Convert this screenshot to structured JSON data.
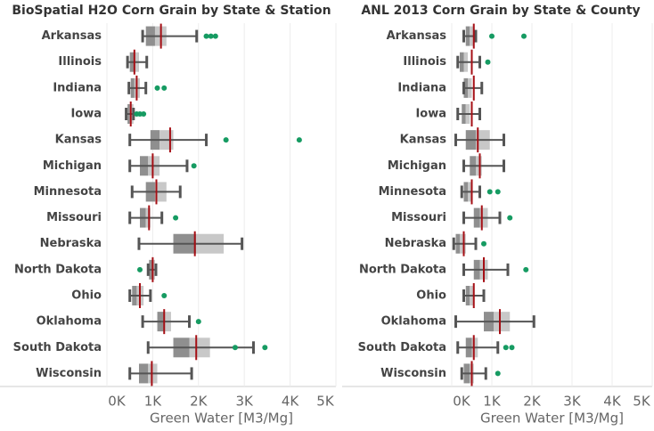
{
  "chart_data": [
    {
      "type": "box",
      "title": "BioSpatial H2O Corn Grain by State & Station",
      "x_label": "Green Water [M3/Mg]",
      "categories": [
        "Arkansas",
        "Illinois",
        "Indiana",
        "Iowa",
        "Kansas",
        "Michigan",
        "Minnesota",
        "Missouri",
        "Nebraska",
        "North Dakota",
        "Ohio",
        "Oklahoma",
        "South Dakota",
        "Wisconsin"
      ],
      "boxes": [
        {
          "whisker_low": 780,
          "q1": 850,
          "median": 1050,
          "q3": 1300,
          "whisker_high": 1960,
          "reference": 1180,
          "points": [
            2170,
            2270,
            2370
          ]
        },
        {
          "whisker_low": 450,
          "q1": 500,
          "median": 600,
          "q3": 700,
          "whisker_high": 870,
          "reference": 600,
          "points": []
        },
        {
          "whisker_low": 480,
          "q1": 520,
          "median": 600,
          "q3": 720,
          "whisker_high": 850,
          "reference": 650,
          "points": [
            1100,
            1250
          ]
        },
        {
          "whisker_low": 420,
          "q1": 450,
          "median": 500,
          "q3": 580,
          "whisker_high": 580,
          "reference": 520,
          "points": [
            650,
            720,
            800
          ]
        },
        {
          "whisker_low": 500,
          "q1": 950,
          "median": 1150,
          "q3": 1450,
          "whisker_high": 2170,
          "reference": 1380,
          "points": [
            2600,
            4200
          ]
        },
        {
          "whisker_low": 500,
          "q1": 720,
          "median": 900,
          "q3": 1150,
          "whisker_high": 1750,
          "reference": 1000,
          "points": [
            1900
          ]
        },
        {
          "whisker_low": 550,
          "q1": 850,
          "median": 1050,
          "q3": 1300,
          "whisker_high": 1600,
          "reference": 1080,
          "points": []
        },
        {
          "whisker_low": 500,
          "q1": 720,
          "median": 850,
          "q3": 950,
          "whisker_high": 1200,
          "reference": 920,
          "points": [
            1500
          ]
        },
        {
          "whisker_low": 700,
          "q1": 1450,
          "median": 1950,
          "q3": 2550,
          "whisker_high": 2950,
          "reference": 1920,
          "points": []
        },
        {
          "whisker_low": 900,
          "q1": 920,
          "median": 1000,
          "q3": 1050,
          "whisker_high": 1070,
          "reference": 1000,
          "points": [
            720
          ]
        },
        {
          "whisker_low": 500,
          "q1": 550,
          "median": 650,
          "q3": 800,
          "whisker_high": 950,
          "reference": 720,
          "points": [
            1250
          ]
        },
        {
          "whisker_low": 780,
          "q1": 1100,
          "median": 1250,
          "q3": 1400,
          "whisker_high": 1800,
          "reference": 1250,
          "points": [
            2000
          ]
        },
        {
          "whisker_low": 900,
          "q1": 1450,
          "median": 1800,
          "q3": 2250,
          "whisker_high": 3200,
          "reference": 1950,
          "points": [
            2800,
            3450
          ]
        },
        {
          "whisker_low": 500,
          "q1": 700,
          "median": 900,
          "q3": 1100,
          "whisker_high": 1850,
          "reference": 980,
          "points": []
        }
      ],
      "xlim": [
        0,
        5000
      ],
      "xticks": [
        {
          "value": 0,
          "label": "0K"
        },
        {
          "value": 1000,
          "label": "1K"
        },
        {
          "value": 2000,
          "label": "2K"
        },
        {
          "value": 3000,
          "label": "3K"
        },
        {
          "value": 4000,
          "label": "4K"
        },
        {
          "value": 5000,
          "label": "5K"
        }
      ],
      "grid": true,
      "box_colors": [
        "#8f8f8f",
        "#c8c8c8"
      ],
      "whisker_color": "#555555",
      "reference_color": "#a50f15",
      "point_color": "#169b62"
    },
    {
      "type": "box",
      "title": "ANL 2013 Corn Grain by State & County",
      "x_label": "Green Water [M3/Mg]",
      "categories": [
        "Arkansas",
        "Illinois",
        "Indiana",
        "Iowa",
        "Kansas",
        "Michigan",
        "Minnesota",
        "Missouri",
        "Nebraska",
        "North Dakota",
        "Ohio",
        "Oklahoma",
        "South Dakota",
        "Wisconsin"
      ],
      "boxes": [
        {
          "whisker_low": 300,
          "q1": 350,
          "median": 450,
          "q3": 550,
          "whisker_high": 600,
          "reference": 550,
          "points": [
            1000,
            1800
          ]
        },
        {
          "whisker_low": 150,
          "q1": 200,
          "median": 300,
          "q3": 400,
          "whisker_high": 700,
          "reference": 500,
          "points": [
            900
          ]
        },
        {
          "whisker_low": 300,
          "q1": 300,
          "median": 400,
          "q3": 500,
          "whisker_high": 750,
          "reference": 550,
          "points": []
        },
        {
          "whisker_low": 150,
          "q1": 250,
          "median": 350,
          "q3": 450,
          "whisker_high": 700,
          "reference": 500,
          "points": []
        },
        {
          "whisker_low": 100,
          "q1": 350,
          "median": 600,
          "q3": 950,
          "whisker_high": 1300,
          "reference": 650,
          "points": []
        },
        {
          "whisker_low": 300,
          "q1": 450,
          "median": 600,
          "q3": 750,
          "whisker_high": 1300,
          "reference": 700,
          "points": []
        },
        {
          "whisker_low": 250,
          "q1": 300,
          "median": 400,
          "q3": 500,
          "whisker_high": 700,
          "reference": 500,
          "points": [
            950,
            1150
          ]
        },
        {
          "whisker_low": 300,
          "q1": 550,
          "median": 700,
          "q3": 900,
          "whisker_high": 1200,
          "reference": 750,
          "points": [
            1450
          ]
        },
        {
          "whisker_low": 50,
          "q1": 100,
          "median": 200,
          "q3": 350,
          "whisker_high": 600,
          "reference": 300,
          "points": [
            800
          ]
        },
        {
          "whisker_low": 300,
          "q1": 550,
          "median": 700,
          "q3": 900,
          "whisker_high": 1400,
          "reference": 800,
          "points": [
            1850
          ]
        },
        {
          "whisker_low": 300,
          "q1": 350,
          "median": 450,
          "q3": 550,
          "whisker_high": 800,
          "reference": 550,
          "points": []
        },
        {
          "whisker_low": 100,
          "q1": 800,
          "median": 1050,
          "q3": 1450,
          "whisker_high": 2050,
          "reference": 1200,
          "points": []
        },
        {
          "whisker_low": 150,
          "q1": 350,
          "median": 500,
          "q3": 650,
          "whisker_high": 1150,
          "reference": 550,
          "points": [
            1350,
            1500
          ]
        },
        {
          "whisker_low": 250,
          "q1": 300,
          "median": 450,
          "q3": 550,
          "whisker_high": 850,
          "reference": 500,
          "points": [
            1150
          ]
        }
      ],
      "xlim": [
        0,
        5000
      ],
      "xticks": [
        {
          "value": 0,
          "label": "0K"
        },
        {
          "value": 1000,
          "label": "1K"
        },
        {
          "value": 2000,
          "label": "2K"
        },
        {
          "value": 3000,
          "label": "3K"
        },
        {
          "value": 4000,
          "label": "4K"
        },
        {
          "value": 5000,
          "label": "5K"
        }
      ],
      "grid": true,
      "box_colors": [
        "#8f8f8f",
        "#c8c8c8"
      ],
      "whisker_color": "#555555",
      "reference_color": "#a50f15",
      "point_color": "#169b62"
    }
  ]
}
